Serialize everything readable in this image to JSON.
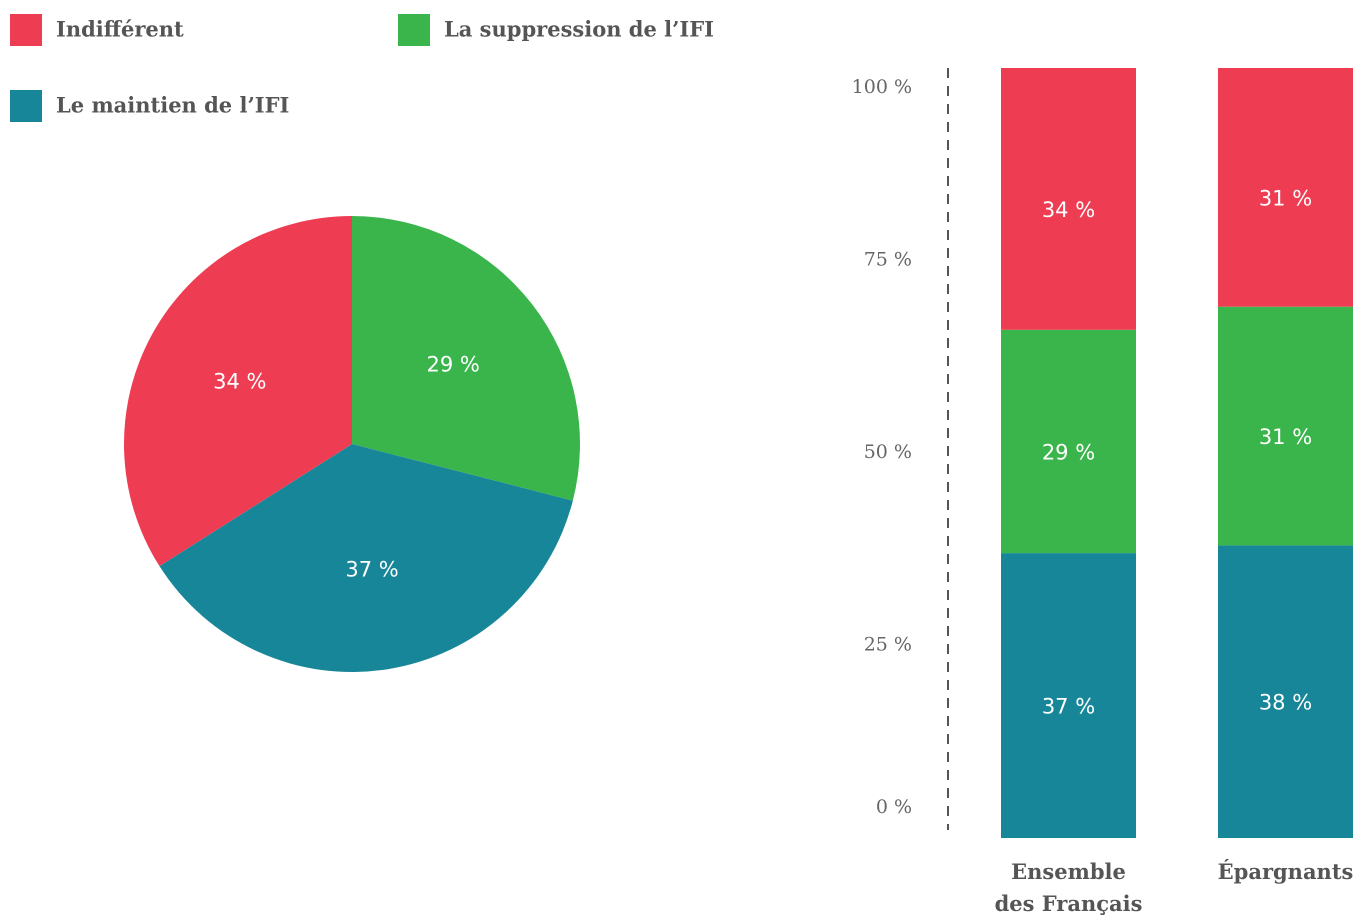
{
  "chart_data": [
    {
      "type": "pie",
      "categories": [
        "Indifférent",
        "La suppression de l’IFI",
        "Le maintien de l’IFI"
      ],
      "values": [
        34,
        29,
        37
      ],
      "value_labels": [
        "34 %",
        "29 %",
        "37 %"
      ],
      "colors": [
        "#ee3d53",
        "#3ab54b",
        "#188699"
      ]
    },
    {
      "type": "stacked_bar",
      "categories": [
        "Ensemble des Français",
        "Épargnants"
      ],
      "series": [
        {
          "color": "#188699",
          "values": [
            37,
            38
          ],
          "value_labels": [
            "37 %",
            "38 %"
          ]
        },
        {
          "color": "#3ab54b",
          "values": [
            29,
            31
          ],
          "value_labels": [
            "29 %",
            "31 %"
          ]
        },
        {
          "color": "#ee3d53",
          "values": [
            34,
            31
          ],
          "value_labels": [
            "34 %",
            "31 %"
          ]
        }
      ],
      "ylim": [
        0,
        100
      ],
      "yticks": [
        {
          "value": 0,
          "label": "0 %"
        },
        {
          "value": 25,
          "label": "25 %"
        },
        {
          "value": 50,
          "label": "50 %"
        },
        {
          "value": 75,
          "label": "75 %"
        },
        {
          "value": 100,
          "label": "100 %"
        }
      ]
    }
  ]
}
